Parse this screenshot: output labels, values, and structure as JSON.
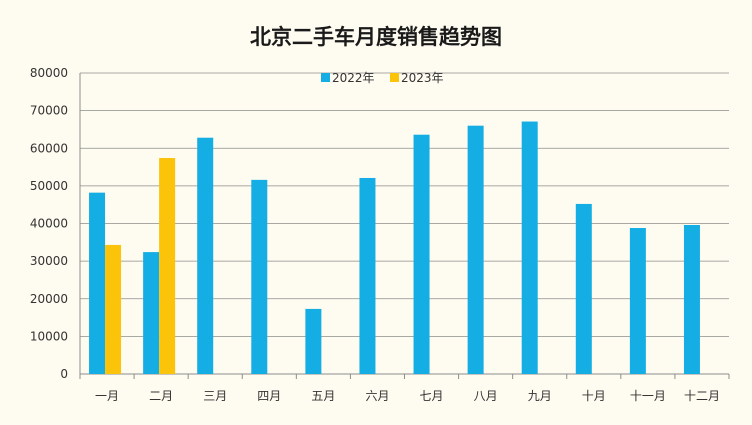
{
  "colors": {
    "background": "#fefbf0",
    "series_2022": "#14aee4",
    "series_2023": "#fbc30a",
    "gridline": "#8c8c8c",
    "axis": "#8c8c8c",
    "text": "#333333"
  },
  "chart_data": {
    "type": "bar",
    "title": "北京二手车月度销售趋势图",
    "xlabel": "",
    "ylabel": "",
    "ylim": [
      0,
      80000
    ],
    "yticks": [
      0,
      10000,
      20000,
      30000,
      40000,
      50000,
      60000,
      70000,
      80000
    ],
    "grid": true,
    "legend_position": "top-center",
    "categories": [
      "一月",
      "二月",
      "三月",
      "四月",
      "五月",
      "六月",
      "七月",
      "八月",
      "九月",
      "十月",
      "十一月",
      "十二月"
    ],
    "series": [
      {
        "name": "2022年",
        "color": "#14aee4",
        "values": [
          48200,
          32400,
          62800,
          51600,
          17300,
          52100,
          63600,
          66000,
          67100,
          45200,
          38800,
          39600
        ]
      },
      {
        "name": "2023年",
        "color": "#fbc30a",
        "values": [
          34300,
          57400,
          null,
          null,
          null,
          null,
          null,
          null,
          null,
          null,
          null,
          null
        ]
      }
    ]
  }
}
